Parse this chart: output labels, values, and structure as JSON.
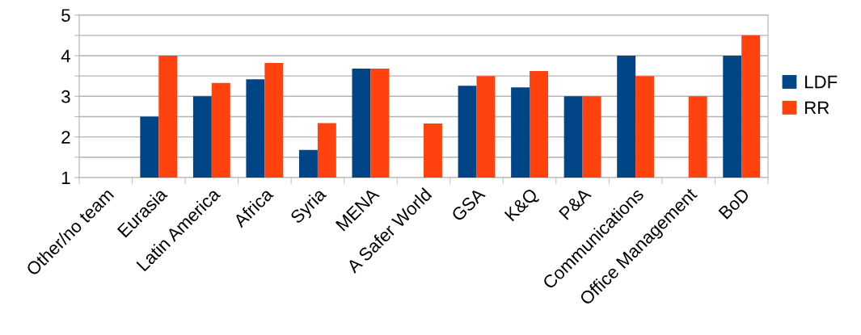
{
  "chart_data": {
    "type": "bar",
    "categories": [
      "Other/no team",
      "Eurasia",
      "Latin America",
      "Africa",
      "Syria",
      "MENA",
      "A Safer World",
      "GSA",
      "K&Q",
      "P&A",
      "Communications",
      "Office Management",
      "BoD"
    ],
    "series": [
      {
        "name": "LDF",
        "color": "#004586",
        "values": [
          null,
          2.5,
          3.0,
          3.42,
          1.68,
          3.68,
          null,
          3.26,
          3.22,
          3.0,
          4.0,
          null,
          4.0
        ]
      },
      {
        "name": "RR",
        "color": "#ff420e",
        "values": [
          null,
          4.0,
          3.33,
          3.82,
          2.34,
          3.68,
          2.33,
          3.5,
          3.62,
          3.0,
          3.5,
          3.0,
          4.5
        ]
      }
    ],
    "ylim": [
      1,
      5
    ],
    "yticks": [
      1,
      {
        "value": 1.5,
        "label": null
      },
      2,
      {
        "value": 2.5,
        "label": null
      },
      3,
      {
        "value": 3.5,
        "label": null
      },
      4,
      {
        "value": 4.5,
        "label": null
      },
      5
    ],
    "grid": "y",
    "legend": "right"
  }
}
